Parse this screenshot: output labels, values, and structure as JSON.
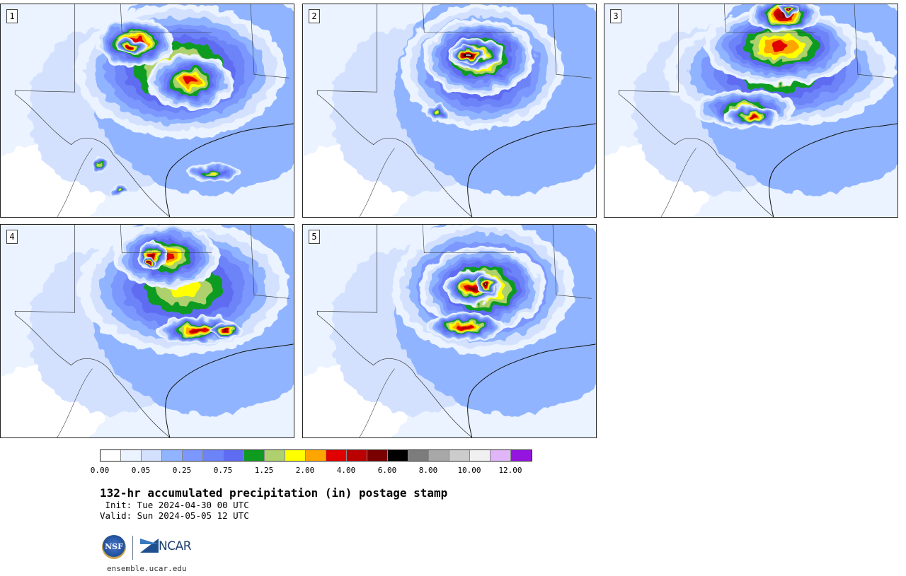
{
  "panels": [
    {
      "id": "p1",
      "label": "1"
    },
    {
      "id": "p2",
      "label": "2"
    },
    {
      "id": "p3",
      "label": "3"
    },
    {
      "id": "p4",
      "label": "4"
    },
    {
      "id": "p5",
      "label": "5"
    }
  ],
  "colorbar": {
    "colors": [
      "#ffffff",
      "#eaf3ff",
      "#d3e1ff",
      "#90b4ff",
      "#7c98ff",
      "#6d83f8",
      "#5f6cf2",
      "#0e9b20",
      "#aed06d",
      "#ffff00",
      "#ffa500",
      "#e00000",
      "#bb0000",
      "#7a0000",
      "#000000",
      "#7c7c7c",
      "#a8a8a8",
      "#cccccc",
      "#f0f0f0",
      "#e0b6f8",
      "#9614e0"
    ],
    "ticks": [
      "0.00",
      "0.05",
      "0.25",
      "0.75",
      "1.25",
      "2.00",
      "4.00",
      "6.00",
      "8.00",
      "10.00",
      "12.00"
    ]
  },
  "title": "132-hr accumulated precipitation (in) postage stamp",
  "init_line": " Init: Tue 2024-04-30 00 UTC",
  "valid_line": "Valid: Sun 2024-05-05 12 UTC",
  "logos": {
    "nsf": "NSF",
    "ncar": "NCAR"
  },
  "url": "ensemble.ucar.edu"
}
